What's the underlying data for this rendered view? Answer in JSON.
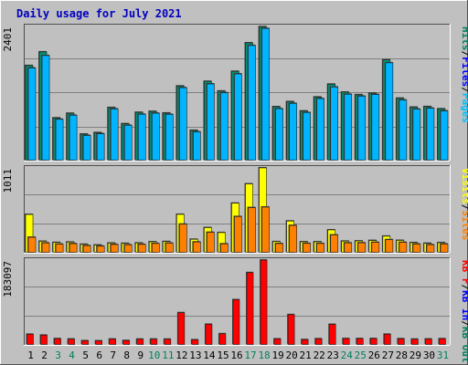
{
  "chart_data": {
    "type": "bar",
    "title": "Daily usage for July 2021",
    "days": [
      "1",
      "2",
      "3",
      "4",
      "5",
      "6",
      "7",
      "8",
      "9",
      "10",
      "11",
      "12",
      "13",
      "14",
      "15",
      "16",
      "17",
      "18",
      "19",
      "20",
      "21",
      "22",
      "23",
      "24",
      "25",
      "26",
      "27",
      "28",
      "29",
      "30",
      "31"
    ],
    "weekend_days": [
      "3",
      "4",
      "10",
      "11",
      "17",
      "18",
      "24",
      "25",
      "31"
    ],
    "panels": [
      {
        "id": "hits",
        "ymax_label": "2401",
        "ylim": [
          0,
          2401
        ],
        "legend": [
          {
            "text": "Hits",
            "color": "#00805c"
          },
          {
            "text": "Files",
            "color": "#0000ff"
          },
          {
            "text": "Pages",
            "color": "#00c0ff"
          }
        ],
        "series": [
          {
            "name": "Hits",
            "color": "#009474",
            "values": [
              1701,
              1945,
              764,
              846,
              474,
              501,
              949,
              659,
              863,
              880,
              851,
              1335,
              541,
              1418,
              1244,
              1597,
              2107,
              2396,
              964,
              1055,
              887,
              1138,
              1368,
              1225,
              1178,
              1207,
              1803,
              1116,
              956,
              966,
              926
            ]
          },
          {
            "name": "Files",
            "color": "#00b4ff",
            "values": [
              1656,
              1880,
              738,
              811,
              449,
              480,
              924,
              631,
              829,
              848,
              828,
              1304,
              514,
              1372,
              1214,
              1551,
              2060,
              2365,
              928,
              1023,
              860,
              1110,
              1318,
              1187,
              1153,
              1183,
              1750,
              1083,
              920,
              936,
              889
            ]
          }
        ]
      },
      {
        "id": "visits",
        "ymax_label": "1011",
        "ylim": [
          0,
          1011
        ],
        "legend": [
          {
            "text": "Visits",
            "color": "#ffff00"
          },
          {
            "text": "Sites",
            "color": "#ff8000"
          }
        ],
        "series": [
          {
            "name": "Visits",
            "color": "#ffff00",
            "values": [
              456,
              136,
              122,
              127,
              100,
              92,
              115,
              111,
              116,
              130,
              133,
              457,
              160,
              299,
              240,
              590,
              820,
              1011,
              132,
              378,
              130,
              130,
              272,
              138,
              140,
              146,
              197,
              147,
              120,
              112,
              120
            ]
          },
          {
            "name": "Sites",
            "color": "#ff8000",
            "values": [
              184,
              116,
              102,
              108,
              84,
              78,
              98,
              94,
              99,
              110,
              114,
              340,
              128,
              243,
              106,
              431,
              537,
              544,
              109,
              325,
              111,
              110,
              212,
              117,
              118,
              124,
              155,
              124,
              103,
              95,
              103
            ]
          }
        ]
      },
      {
        "id": "kbytes",
        "ymax_label": "183097",
        "ylim": [
          0,
          183097
        ],
        "legend": [
          {
            "text": "KB F",
            "color": "#ff0000"
          },
          {
            "text": "KB In",
            "color": "#0000ff"
          },
          {
            "text": "KB Out",
            "color": "#00805c"
          }
        ],
        "series": [
          {
            "name": "KB F",
            "color": "#ff0000",
            "values": [
              23000,
              21000,
              13500,
              12600,
              9000,
              8700,
              12500,
              9400,
              12400,
              12400,
              12300,
              69500,
              11000,
              44500,
              24000,
              97500,
              156000,
              183000,
              12900,
              65300,
              11400,
              13200,
              44300,
              13600,
              13600,
              13600,
              23000,
              13300,
              12300,
              12700,
              13300
            ]
          }
        ]
      }
    ]
  }
}
